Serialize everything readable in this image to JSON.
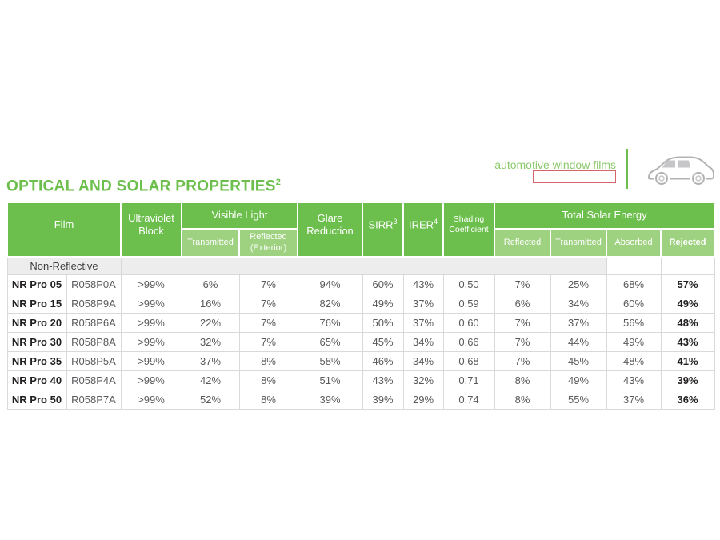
{
  "brand": {
    "tagline": "automotive window films",
    "redacted_box": "",
    "car_icon": "car-outline-icon"
  },
  "title": {
    "text": "OPTICAL AND SOLAR PROPERTIES",
    "superscript": "2"
  },
  "colors": {
    "header_green": "#6cbf4c",
    "subheader_green": "#9ed180",
    "tagline_green": "#8cc96d",
    "redacted_border_red": "#d5666b",
    "section_row_bg": "#ededee",
    "row_border": "#d9d9d9",
    "data_text": "#58595b",
    "film_name_text": "#221f1f"
  },
  "table": {
    "headers": {
      "film": "Film",
      "ultraviolet_block": "Ultraviolet Block",
      "visible_light": "Visible Light",
      "visible_light_sub": [
        "Transmitted",
        "Reflected (Exterior)"
      ],
      "glare_reduction": "Glare Reduction",
      "sirr": {
        "base": "SIRR",
        "sup": "3"
      },
      "irer": {
        "base": "IRER",
        "sup": "4"
      },
      "shading_coefficient": "Shading Coefficient",
      "total_solar_energy": "Total Solar Energy",
      "total_solar_energy_sub": [
        "Reflected",
        "Transmitted",
        "Absorbed",
        "Rejected"
      ]
    },
    "section_label": "Non-Reflective",
    "column_keys": [
      "film-name",
      "film-code",
      "uv-block",
      "vl-transmitted",
      "vl-reflected-exterior",
      "glare-reduction",
      "sirr",
      "irer",
      "shading-coefficient",
      "tse-reflected",
      "tse-transmitted",
      "tse-absorbed",
      "tse-rejected"
    ],
    "rows": [
      [
        "NR Pro 05",
        "R058P0A",
        ">99%",
        "6%",
        "7%",
        "94%",
        "60%",
        "43%",
        "0.50",
        "7%",
        "25%",
        "68%",
        "57%"
      ],
      [
        "NR Pro 15",
        "R058P9A",
        ">99%",
        "16%",
        "7%",
        "82%",
        "49%",
        "37%",
        "0.59",
        "6%",
        "34%",
        "60%",
        "49%"
      ],
      [
        "NR Pro 20",
        "R058P6A",
        ">99%",
        "22%",
        "7%",
        "76%",
        "50%",
        "37%",
        "0.60",
        "7%",
        "37%",
        "56%",
        "48%"
      ],
      [
        "NR Pro 30",
        "R058P8A",
        ">99%",
        "32%",
        "7%",
        "65%",
        "45%",
        "34%",
        "0.66",
        "7%",
        "44%",
        "49%",
        "43%"
      ],
      [
        "NR Pro 35",
        "R058P5A",
        ">99%",
        "37%",
        "8%",
        "58%",
        "46%",
        "34%",
        "0.68",
        "7%",
        "45%",
        "48%",
        "41%"
      ],
      [
        "NR Pro 40",
        "R058P4A",
        ">99%",
        "42%",
        "8%",
        "51%",
        "43%",
        "32%",
        "0.71",
        "8%",
        "49%",
        "43%",
        "39%"
      ],
      [
        "NR Pro 50",
        "R058P7A",
        ">99%",
        "52%",
        "8%",
        "39%",
        "39%",
        "29%",
        "0.74",
        "8%",
        "55%",
        "37%",
        "36%"
      ]
    ]
  }
}
